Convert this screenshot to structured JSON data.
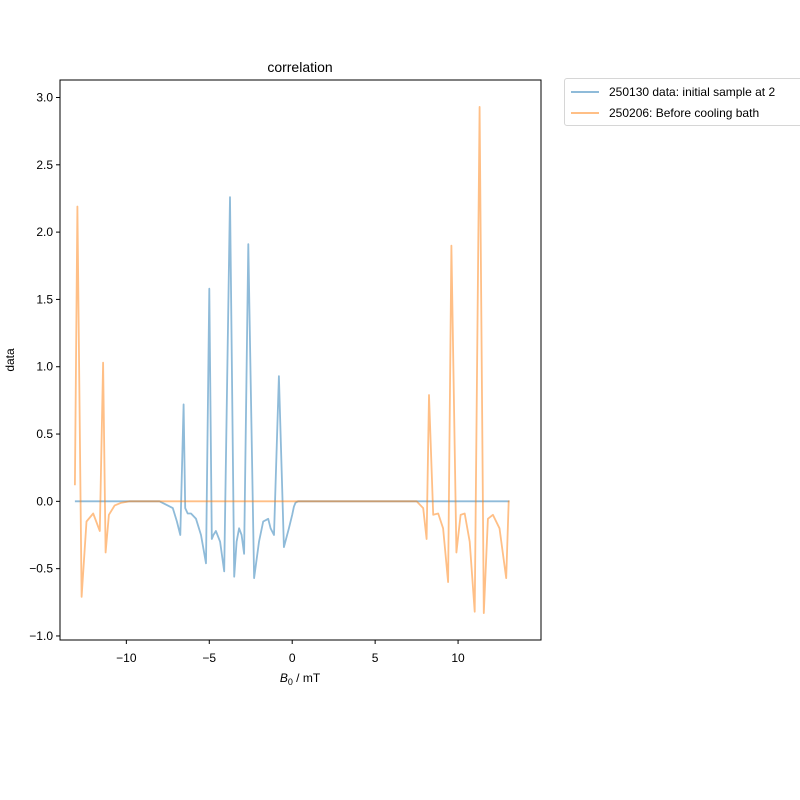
{
  "chart_data": {
    "type": "line",
    "title": "correlation",
    "xlabel": "B0 / mT",
    "xlabel_parts": {
      "symbol": "B",
      "subscript": "0",
      "unit": " / mT"
    },
    "ylabel": "data",
    "xlim": [
      -14.0,
      15.0
    ],
    "ylim": [
      -1.03,
      3.13
    ],
    "xticks": [
      -10,
      -5,
      0,
      5,
      10
    ],
    "xtick_labels": [
      "−10",
      "−5",
      "0",
      "5",
      "10"
    ],
    "yticks": [
      3.0,
      2.5,
      2.0,
      1.5,
      1.0,
      0.5,
      0.0,
      -0.5,
      -1.0
    ],
    "ytick_labels": [
      "3.0",
      "2.5",
      "2.0",
      "1.5",
      "1.0",
      "0.5",
      "0.0",
      "−0.5",
      "−1.0"
    ],
    "grid": false,
    "legend_position": "outside upper right",
    "series": [
      {
        "name": "250130 data: initial sample at 2",
        "color": "#1f77b4",
        "alpha": 0.5,
        "x": [
          -13.1,
          -8.0,
          -7.2,
          -6.95,
          -6.75,
          -6.55,
          -6.45,
          -6.3,
          -6.1,
          -5.8,
          -5.5,
          -5.2,
          -5.0,
          -4.85,
          -4.75,
          -4.6,
          -4.35,
          -4.1,
          -3.75,
          -3.5,
          -3.35,
          -3.2,
          -3.05,
          -2.9,
          -2.65,
          -2.3,
          -2.0,
          -1.75,
          -1.6,
          -1.45,
          -1.3,
          -1.1,
          -0.8,
          -0.5,
          -0.2,
          0.0,
          0.1,
          0.2,
          0.35,
          0.6,
          1.0,
          1.8,
          3.0,
          13.1
        ],
        "y": [
          0.0,
          0.0,
          -0.05,
          -0.15,
          -0.25,
          0.72,
          -0.05,
          -0.09,
          -0.09,
          -0.13,
          -0.25,
          -0.46,
          1.58,
          -0.28,
          -0.25,
          -0.22,
          -0.3,
          -0.52,
          2.26,
          -0.56,
          -0.3,
          -0.2,
          -0.25,
          -0.39,
          1.91,
          -0.57,
          -0.3,
          -0.15,
          -0.14,
          -0.13,
          -0.2,
          -0.25,
          0.93,
          -0.34,
          -0.2,
          -0.1,
          -0.04,
          -0.01,
          0.0,
          0.0,
          0.0,
          0.0,
          0.0,
          0.0
        ]
      },
      {
        "name": "250206: Before cooling bath",
        "color": "#ff7f0e",
        "alpha": 0.5,
        "x": [
          -13.1,
          -12.95,
          -12.7,
          -12.4,
          -12.0,
          -11.6,
          -11.4,
          -11.25,
          -11.05,
          -10.7,
          -10.3,
          -9.8,
          -9.0,
          7.5,
          7.9,
          8.1,
          8.25,
          8.5,
          8.8,
          9.1,
          9.4,
          9.6,
          9.9,
          10.15,
          10.4,
          10.7,
          11.0,
          11.3,
          11.55,
          11.8,
          12.1,
          12.5,
          12.9,
          13.05,
          13.1
        ],
        "y": [
          0.12,
          2.19,
          -0.71,
          -0.15,
          -0.09,
          -0.22,
          1.03,
          -0.38,
          -0.1,
          -0.03,
          -0.01,
          0.0,
          0.0,
          0.0,
          -0.05,
          -0.28,
          0.79,
          -0.1,
          -0.09,
          -0.2,
          -0.6,
          1.9,
          -0.38,
          -0.1,
          -0.09,
          -0.3,
          -0.82,
          2.93,
          -0.83,
          -0.13,
          -0.1,
          -0.2,
          -0.57,
          0.0,
          0.0
        ]
      }
    ]
  },
  "legend": {
    "items": [
      {
        "label": "250130 data: initial sample at 2",
        "color": "#1f77b4"
      },
      {
        "label": "250206: Before cooling bath",
        "color": "#ff7f0e"
      }
    ]
  }
}
